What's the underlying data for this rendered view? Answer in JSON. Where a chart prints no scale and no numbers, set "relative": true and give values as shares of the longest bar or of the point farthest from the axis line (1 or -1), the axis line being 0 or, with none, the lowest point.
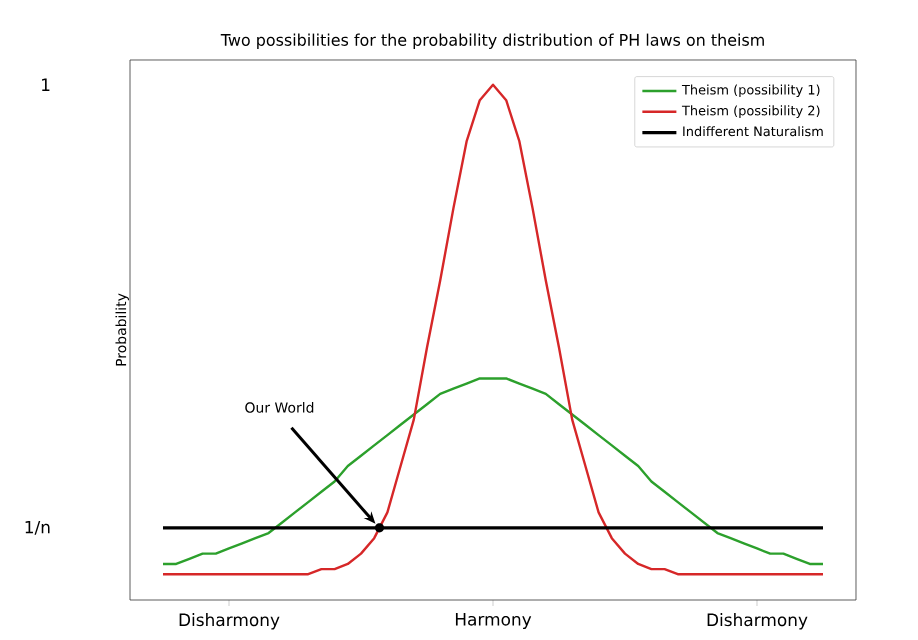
{
  "chart_data": {
    "type": "line",
    "title": "Two possibilities for the probability distribution of PH laws on theism",
    "ylabel": "Probability",
    "relative": true,
    "categories": [
      null,
      null,
      null,
      null,
      null,
      "Disharmony",
      null,
      null,
      null,
      null,
      null,
      null,
      null,
      null,
      null,
      null,
      null,
      null,
      null,
      null,
      null,
      null,
      null,
      null,
      null,
      "Harmony",
      null,
      null,
      null,
      null,
      null,
      null,
      null,
      null,
      null,
      null,
      null,
      null,
      null,
      null,
      null,
      null,
      null,
      null,
      null,
      "Disharmony",
      null,
      null,
      null,
      null,
      null
    ],
    "series": [
      {
        "name": "Theism (possibility 1)",
        "color": "#2ca02c",
        "values": [
          0.07,
          0.07,
          0.08,
          0.09,
          0.09,
          0.1,
          0.11,
          0.12,
          0.13,
          0.15,
          0.17,
          0.19,
          0.21,
          0.23,
          0.26,
          0.28,
          0.3,
          0.32,
          0.34,
          0.36,
          0.38,
          0.4,
          0.41,
          0.42,
          0.43,
          0.43,
          0.43,
          0.42,
          0.41,
          0.4,
          0.38,
          0.36,
          0.34,
          0.32,
          0.3,
          0.28,
          0.26,
          0.23,
          0.21,
          0.19,
          0.17,
          0.15,
          0.13,
          0.12,
          0.11,
          0.1,
          0.09,
          0.09,
          0.08,
          0.07,
          0.07
        ]
      },
      {
        "name": "Theism (possibility 2)",
        "color": "#d62728",
        "values": [
          0.05,
          0.05,
          0.05,
          0.05,
          0.05,
          0.05,
          0.05,
          0.05,
          0.05,
          0.05,
          0.05,
          0.05,
          0.06,
          0.06,
          0.07,
          0.09,
          0.12,
          0.17,
          0.26,
          0.35,
          0.49,
          0.62,
          0.76,
          0.89,
          0.97,
          1.0,
          0.97,
          0.89,
          0.76,
          0.62,
          0.49,
          0.35,
          0.26,
          0.17,
          0.12,
          0.09,
          0.07,
          0.06,
          0.06,
          0.05,
          0.05,
          0.05,
          0.05,
          0.05,
          0.05,
          0.05,
          0.05,
          0.05,
          0.05,
          0.05,
          0.05
        ]
      },
      {
        "name": "Indifferent Naturalism",
        "color": "#000000",
        "values": [
          0.14,
          0.14,
          0.14,
          0.14,
          0.14,
          0.14,
          0.14,
          0.14,
          0.14,
          0.14,
          0.14,
          0.14,
          0.14,
          0.14,
          0.14,
          0.14,
          0.14,
          0.14,
          0.14,
          0.14,
          0.14,
          0.14,
          0.14,
          0.14,
          0.14,
          0.14,
          0.14,
          0.14,
          0.14,
          0.14,
          0.14,
          0.14,
          0.14,
          0.14,
          0.14,
          0.14,
          0.14,
          0.14,
          0.14,
          0.14,
          0.14,
          0.14,
          0.14,
          0.14,
          0.14,
          0.14,
          0.14,
          0.14,
          0.14,
          0.14,
          0.14
        ]
      }
    ],
    "annotations": [
      "Our World",
      "1",
      "1/n"
    ],
    "legend": "top right",
    "grid": false,
    "marker": "none",
    "line_style": "solid"
  }
}
